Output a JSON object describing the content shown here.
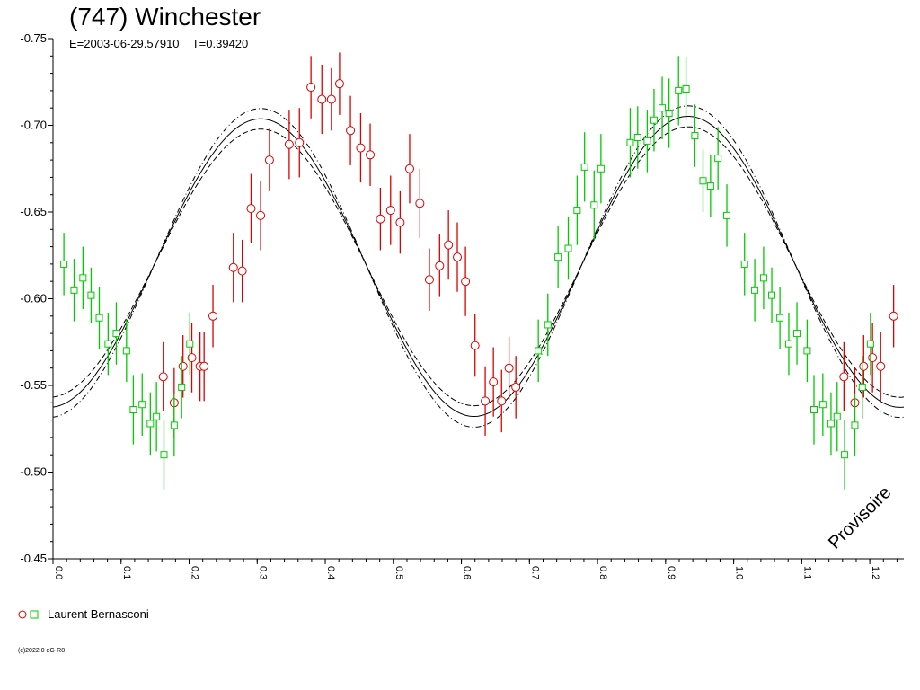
{
  "title": "(747) Winchester",
  "subtitle": "E=2003-06-29.57910    T=0.39420",
  "watermark": "Provisoire",
  "legend": {
    "label": "Laurent Bernasconi",
    "colors": [
      "#dd0000",
      "#00cc00"
    ]
  },
  "copyright": "(c)2022 0 dG-R8",
  "chart_data": {
    "type": "scatter",
    "xlim": [
      0.0,
      1.25
    ],
    "ylim": [
      -0.75,
      -0.45
    ],
    "y_inverted": true,
    "y_ticks": [
      "-0.75",
      "-0.70",
      "-0.65",
      "-0.60",
      "-0.55",
      "-0.50",
      "-0.45"
    ],
    "x_ticks": [
      "0.0",
      "0.1",
      "0.2",
      "0.3",
      "0.4",
      "0.5",
      "0.6",
      "0.7",
      "0.8",
      "0.9",
      "1.0",
      "1.1",
      "1.2"
    ],
    "curve": {
      "fourier": {
        "a0": -0.6196,
        "terms": [
          {
            "k": 2,
            "cos": 0.0847,
            "sin": -0.0051
          },
          {
            "k": 1,
            "cos": -0.0026,
            "sin": 0.0008
          }
        ]
      },
      "envelope": 0.006
    },
    "series": [
      {
        "marker": "circle",
        "color": "#dd0000",
        "points": [
          [
            0.162,
            -0.555,
            0.02
          ],
          [
            0.178,
            -0.54,
            0.02
          ],
          [
            0.191,
            -0.561,
            0.018
          ],
          [
            0.204,
            -0.566,
            0.02
          ],
          [
            0.216,
            -0.561,
            0.02
          ],
          [
            0.222,
            -0.561,
            0.02
          ],
          [
            0.235,
            -0.59,
            0.018
          ],
          [
            0.265,
            -0.618,
            0.02
          ],
          [
            0.278,
            -0.616,
            0.018
          ],
          [
            0.291,
            -0.652,
            0.02
          ],
          [
            0.305,
            -0.648,
            0.02
          ],
          [
            0.318,
            -0.68,
            0.018
          ],
          [
            0.347,
            -0.689,
            0.02
          ],
          [
            0.362,
            -0.69,
            0.02
          ],
          [
            0.379,
            -0.722,
            0.018
          ],
          [
            0.395,
            -0.715,
            0.02
          ],
          [
            0.409,
            -0.715,
            0.018
          ],
          [
            0.421,
            -0.724,
            0.018
          ],
          [
            0.437,
            -0.697,
            0.02
          ],
          [
            0.452,
            -0.687,
            0.02
          ],
          [
            0.466,
            -0.683,
            0.018
          ],
          [
            0.481,
            -0.646,
            0.018
          ],
          [
            0.496,
            -0.651,
            0.02
          ],
          [
            0.51,
            -0.644,
            0.018
          ],
          [
            0.524,
            -0.675,
            0.02
          ],
          [
            0.539,
            -0.655,
            0.02
          ],
          [
            0.553,
            -0.611,
            0.018
          ],
          [
            0.568,
            -0.619,
            0.018
          ],
          [
            0.581,
            -0.631,
            0.02
          ],
          [
            0.594,
            -0.624,
            0.02
          ],
          [
            0.606,
            -0.61,
            0.02
          ],
          [
            0.62,
            -0.573,
            0.018
          ],
          [
            0.635,
            -0.541,
            0.02
          ],
          [
            0.647,
            -0.552,
            0.02
          ],
          [
            0.659,
            -0.541,
            0.018
          ],
          [
            0.67,
            -0.56,
            0.018
          ],
          [
            0.68,
            -0.549,
            0.018
          ],
          [
            1.162,
            -0.555,
            0.02
          ],
          [
            1.178,
            -0.54,
            0.02
          ],
          [
            1.191,
            -0.561,
            0.018
          ],
          [
            1.204,
            -0.566,
            0.02
          ],
          [
            1.216,
            -0.561,
            0.02
          ],
          [
            1.235,
            -0.59,
            0.018
          ]
        ]
      },
      {
        "marker": "square",
        "color": "#00cc00",
        "points": [
          [
            0.016,
            -0.62,
            0.018
          ],
          [
            0.031,
            -0.605,
            0.018
          ],
          [
            0.044,
            -0.612,
            0.018
          ],
          [
            0.056,
            -0.602,
            0.016
          ],
          [
            0.068,
            -0.589,
            0.018
          ],
          [
            0.081,
            -0.574,
            0.018
          ],
          [
            0.093,
            -0.58,
            0.018
          ],
          [
            0.108,
            -0.57,
            0.018
          ],
          [
            0.118,
            -0.536,
            0.02
          ],
          [
            0.131,
            -0.539,
            0.018
          ],
          [
            0.143,
            -0.528,
            0.018
          ],
          [
            0.152,
            -0.532,
            0.02
          ],
          [
            0.163,
            -0.51,
            0.02
          ],
          [
            0.178,
            -0.527,
            0.018
          ],
          [
            0.189,
            -0.549,
            0.018
          ],
          [
            0.201,
            -0.574,
            0.018
          ],
          [
            0.713,
            -0.57,
            0.018
          ],
          [
            0.727,
            -0.585,
            0.018
          ],
          [
            0.742,
            -0.624,
            0.018
          ],
          [
            0.757,
            -0.629,
            0.018
          ],
          [
            0.77,
            -0.651,
            0.02
          ],
          [
            0.781,
            -0.676,
            0.02
          ],
          [
            0.795,
            -0.654,
            0.02
          ],
          [
            0.805,
            -0.675,
            0.02
          ],
          [
            0.848,
            -0.69,
            0.02
          ],
          [
            0.859,
            -0.693,
            0.018
          ],
          [
            0.873,
            -0.691,
            0.018
          ],
          [
            0.883,
            -0.703,
            0.018
          ],
          [
            0.895,
            -0.71,
            0.018
          ],
          [
            0.905,
            -0.707,
            0.02
          ],
          [
            0.919,
            -0.72,
            0.02
          ],
          [
            0.93,
            -0.721,
            0.018
          ],
          [
            0.943,
            -0.694,
            0.018
          ],
          [
            0.955,
            -0.668,
            0.018
          ],
          [
            0.966,
            -0.665,
            0.018
          ],
          [
            0.977,
            -0.681,
            0.018
          ],
          [
            0.99,
            -0.648,
            0.018
          ],
          [
            1.016,
            -0.62,
            0.018
          ],
          [
            1.031,
            -0.605,
            0.018
          ],
          [
            1.044,
            -0.612,
            0.018
          ],
          [
            1.056,
            -0.602,
            0.016
          ],
          [
            1.068,
            -0.589,
            0.018
          ],
          [
            1.081,
            -0.574,
            0.018
          ],
          [
            1.093,
            -0.58,
            0.018
          ],
          [
            1.108,
            -0.57,
            0.018
          ],
          [
            1.118,
            -0.536,
            0.02
          ],
          [
            1.131,
            -0.539,
            0.018
          ],
          [
            1.143,
            -0.528,
            0.018
          ],
          [
            1.152,
            -0.532,
            0.02
          ],
          [
            1.163,
            -0.51,
            0.02
          ],
          [
            1.178,
            -0.527,
            0.018
          ],
          [
            1.189,
            -0.549,
            0.018
          ],
          [
            1.201,
            -0.574,
            0.018
          ]
        ]
      }
    ]
  }
}
